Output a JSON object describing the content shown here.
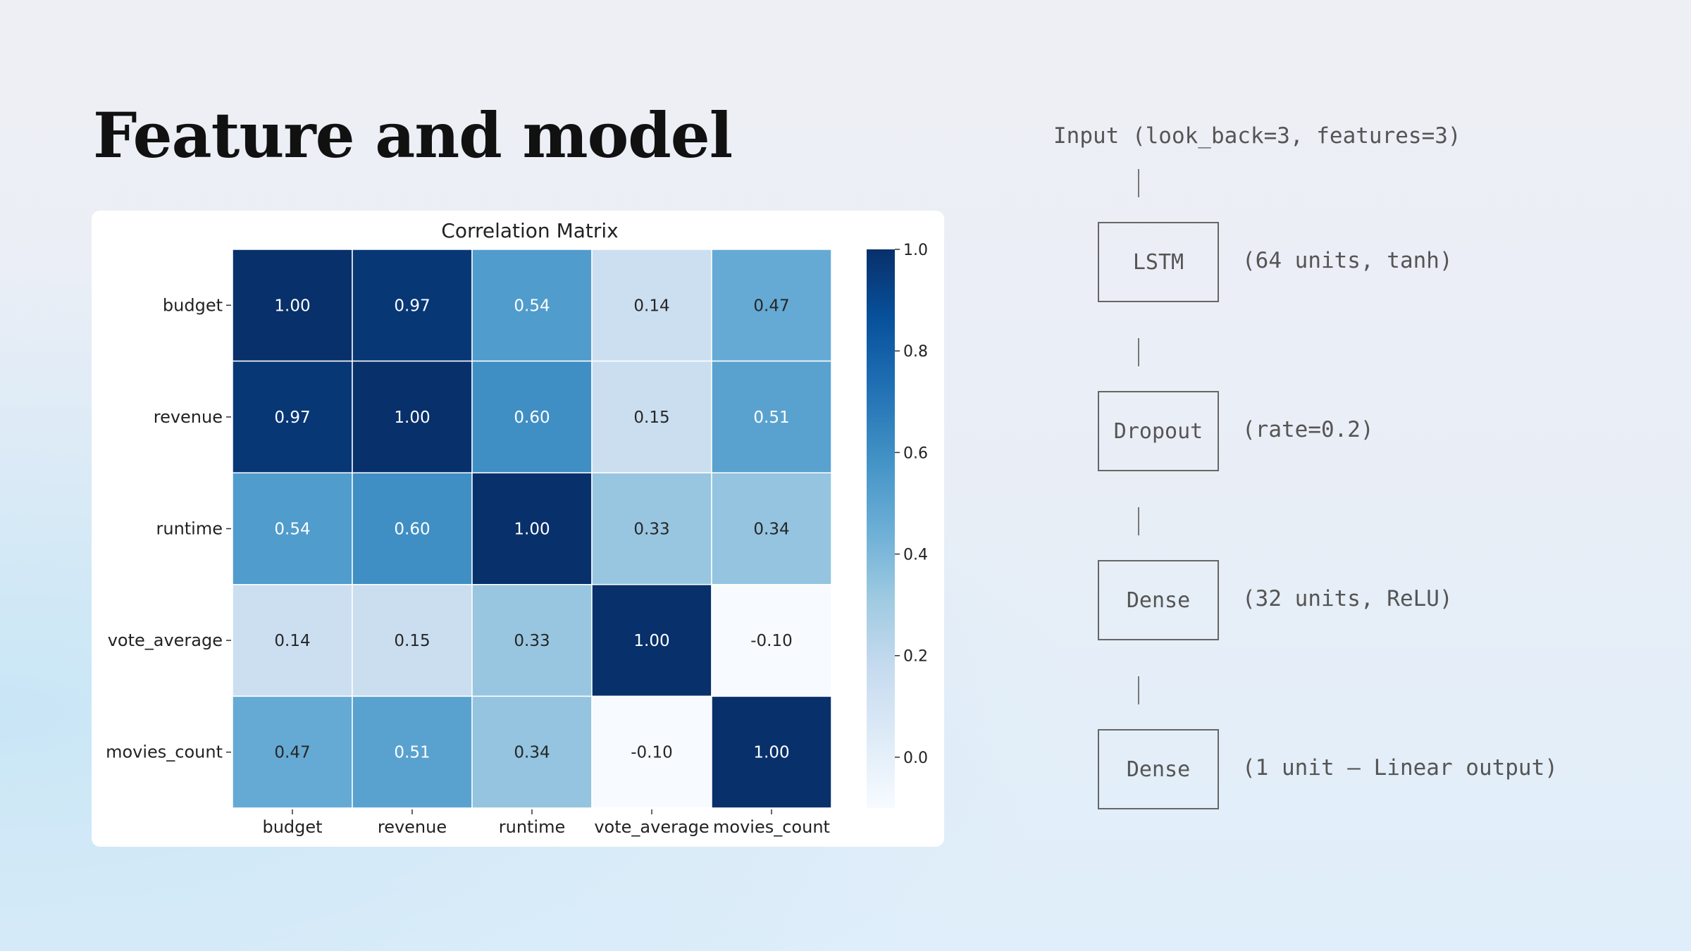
{
  "slide": {
    "title": "Feature and model"
  },
  "chart_data": {
    "type": "heatmap",
    "title": "Correlation Matrix",
    "rows": [
      "budget",
      "revenue",
      "runtime",
      "vote_average",
      "movies_count"
    ],
    "columns": [
      "budget",
      "revenue",
      "runtime",
      "vote_average",
      "movies_count"
    ],
    "values": [
      [
        1.0,
        0.97,
        0.54,
        0.14,
        0.47
      ],
      [
        0.97,
        1.0,
        0.6,
        0.15,
        0.51
      ],
      [
        0.54,
        0.6,
        1.0,
        0.33,
        0.34
      ],
      [
        0.14,
        0.15,
        0.33,
        1.0,
        -0.1
      ],
      [
        0.47,
        0.51,
        0.34,
        -0.1,
        1.0
      ]
    ],
    "colormap": "Blues",
    "colorbar_range": [
      -0.1,
      1.0
    ],
    "colorbar_ticks": [
      "1.0",
      "0.8",
      "0.6",
      "0.4",
      "0.2",
      "0.0"
    ],
    "annotation_format": "0.00"
  },
  "model_diagram": {
    "input_label": "Input (look_back=3, features=3)",
    "layers": [
      {
        "name": "LSTM",
        "note": "(64 units, tanh)"
      },
      {
        "name": "Dropout",
        "note": "(rate=0.2)"
      },
      {
        "name": "Dense",
        "note": "(32 units, ReLU)"
      },
      {
        "name": "Dense",
        "note": "(1 unit – Linear output)"
      }
    ]
  }
}
